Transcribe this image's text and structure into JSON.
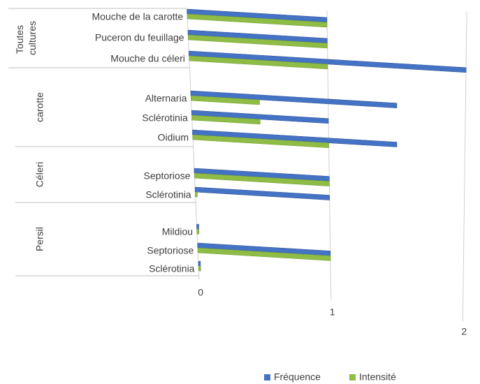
{
  "chart_data": {
    "type": "bar",
    "orientation": "horizontal",
    "groups": [
      {
        "name": "Toutes cultures",
        "categories": [
          "Mouche de la carotte",
          "Puceron du feuillage",
          "Mouche du céleri"
        ]
      },
      {
        "name": "carotte",
        "categories": [
          "Alternaria",
          "Sclérotinia",
          "Oidium"
        ]
      },
      {
        "name": "Céleri",
        "categories": [
          "Septoriose",
          "Sclérotinia"
        ]
      },
      {
        "name": "Persil",
        "categories": [
          "Mildiou",
          "Septoriose",
          "Sclérotinia"
        ]
      }
    ],
    "series": [
      {
        "name": "Fréquence",
        "color": "#4472c4",
        "values": [
          1,
          1,
          2,
          1.5,
          1,
          1.5,
          1,
          1,
          0,
          1,
          0
        ]
      },
      {
        "name": "Intensité",
        "color": "#8fbc45",
        "values": [
          1,
          1,
          1,
          0.5,
          0.5,
          1,
          1,
          0,
          0,
          1,
          0
        ]
      }
    ],
    "xlim": [
      0,
      2
    ],
    "xticks": [
      0,
      1,
      2
    ],
    "grid": true,
    "legend": "bottom"
  }
}
